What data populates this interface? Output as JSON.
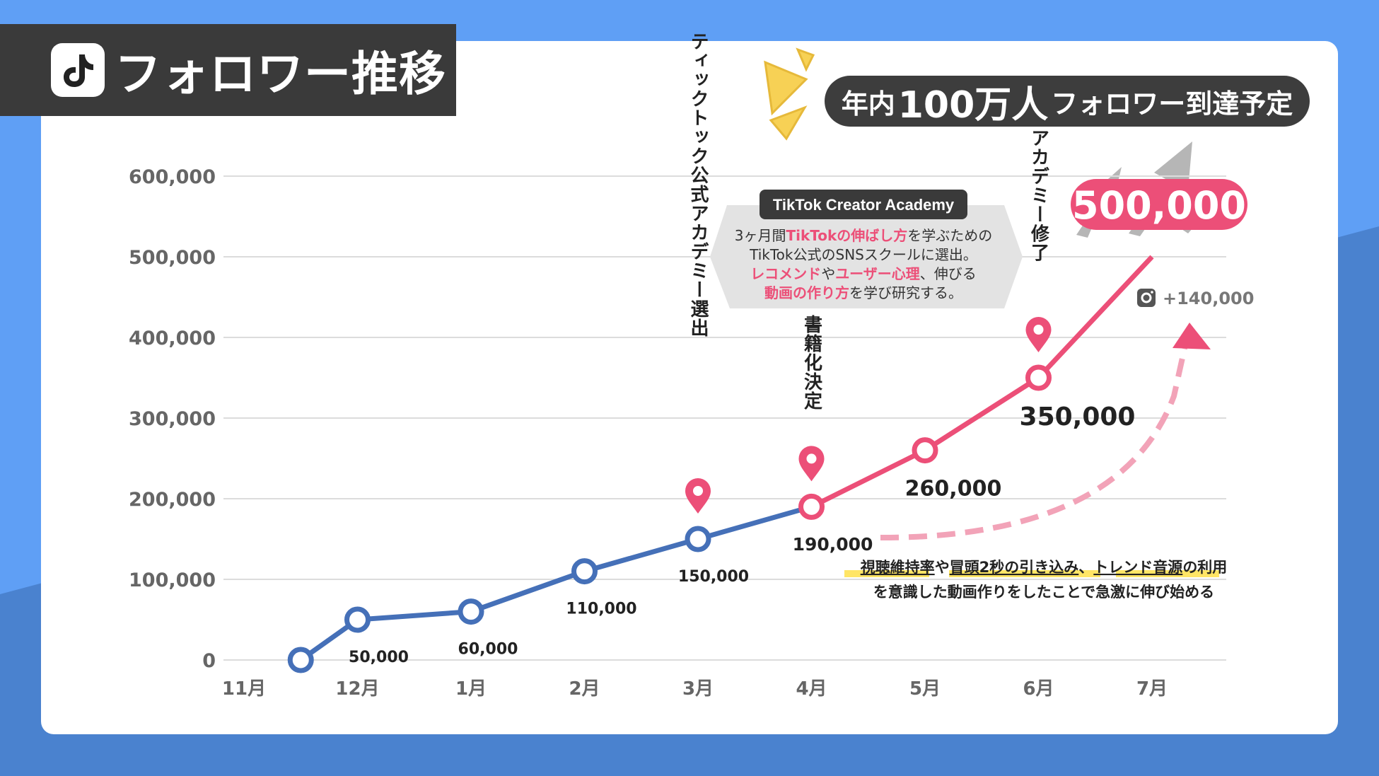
{
  "title": "フォロワー推移",
  "goal": {
    "pre": "年内",
    "big": "100万人",
    "post": "フォロワー到達予定"
  },
  "colors": {
    "blue": "#4570b8",
    "pink": "#ec4f78",
    "grid": "#dcdcdc",
    "highlight": "#ffe14a"
  },
  "chart_data": {
    "type": "line",
    "title": "フォロワー推移",
    "categories": [
      "11月",
      "12月",
      "1月",
      "2月",
      "3月",
      "4月",
      "5月",
      "6月",
      "7月"
    ],
    "ylim": [
      0,
      600000
    ],
    "y_ticks": [
      "0",
      "100,000",
      "200,000",
      "300,000",
      "400,000",
      "500,000",
      "600,000"
    ],
    "series": [
      {
        "name": "blue",
        "x": [
          0.5,
          1,
          2,
          3,
          4,
          5
        ],
        "values": [
          0,
          50000,
          60000,
          110000,
          150000,
          190000
        ]
      },
      {
        "name": "pink",
        "x": [
          5,
          6,
          7,
          8
        ],
        "values": [
          190000,
          260000,
          350000,
          500000
        ]
      }
    ],
    "point_labels": [
      {
        "x": 1,
        "value": 50000,
        "text": "50,000"
      },
      {
        "x": 2,
        "value": 60000,
        "text": "60,000"
      },
      {
        "x": 3,
        "value": 110000,
        "text": "110,000"
      },
      {
        "x": 4,
        "value": 150000,
        "text": "150,000"
      },
      {
        "x": 5,
        "value": 190000,
        "text": "190,000"
      },
      {
        "x": 6,
        "value": 260000,
        "text": "260,000"
      },
      {
        "x": 7,
        "value": 350000,
        "text": "350,000"
      },
      {
        "x": 8,
        "value": 500000,
        "text": "500,000"
      }
    ],
    "events": [
      {
        "x": 4,
        "value": 150000,
        "text": "ティックトック公式アカデミー選出"
      },
      {
        "x": 5,
        "value": 190000,
        "text": "書籍化決定"
      },
      {
        "x": 7,
        "value": 350000,
        "text": "アカデミー修了"
      }
    ]
  },
  "academy": {
    "label": "TikTok Creator Academy",
    "lines": [
      [
        {
          "t": "3ヶ月間",
          "h": false
        },
        {
          "t": "TikTokの伸ばし方",
          "h": true
        },
        {
          "t": "を学ぶための",
          "h": false
        }
      ],
      [
        {
          "t": "TikTok公式のSNSスクールに選出。",
          "h": false
        }
      ],
      [
        {
          "t": "レコメンド",
          "h": true
        },
        {
          "t": "や",
          "h": false
        },
        {
          "t": "ユーザー心理",
          "h": true
        },
        {
          "t": "、伸びる",
          "h": false
        }
      ],
      [
        {
          "t": "動画の作り方",
          "h": true
        },
        {
          "t": "を学び研究する。",
          "h": false
        }
      ]
    ]
  },
  "instagram_delta": "+140,000",
  "note": {
    "line1": [
      {
        "t": "視聴維持率",
        "h": true
      },
      {
        "t": "や",
        "h": false
      },
      {
        "t": "冒頭2秒の引き込み",
        "h": true
      },
      {
        "t": "、",
        "h": false
      },
      {
        "t": "トレンド音源",
        "h": true
      },
      {
        "t": "の利用",
        "h": false
      }
    ],
    "line2": "を意識した動画作りをしたことで急激に伸び始める"
  }
}
